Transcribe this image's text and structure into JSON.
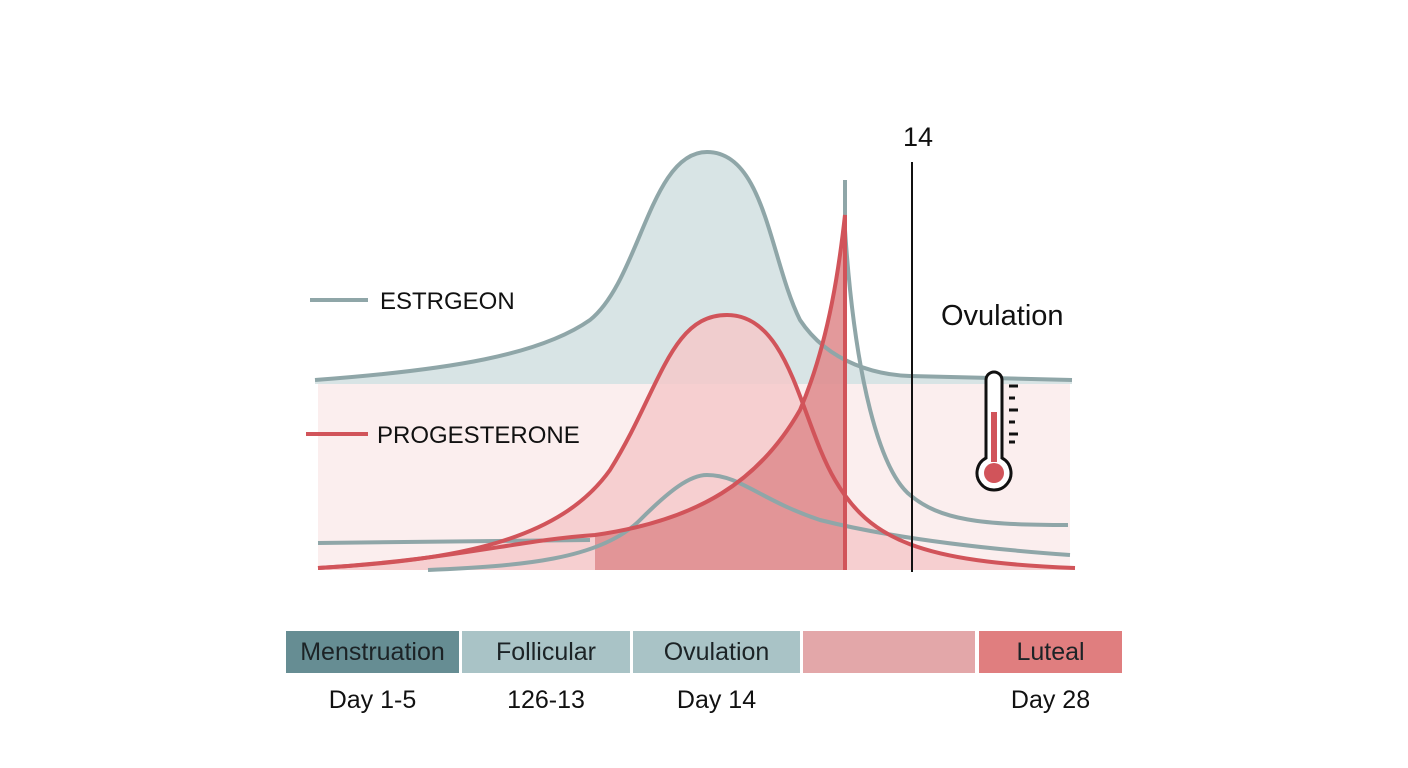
{
  "legend": [
    {
      "label": "ESTRGEON",
      "color": "#8fa6a8"
    },
    {
      "label": "PROGESTERONE",
      "color": "#d1545a"
    }
  ],
  "marker": {
    "label": "14"
  },
  "annotation": {
    "label": "Ovulation",
    "icon": "thermometer-icon"
  },
  "phases": [
    {
      "label": "Menstruation",
      "day": "Day 1-5",
      "color": "#668d93"
    },
    {
      "label": "Follicular",
      "day": "126-13",
      "color": "#a9c3c6"
    },
    {
      "label": "Ovulation",
      "day": "Day 14",
      "color": "#a9c3c6"
    },
    {
      "label": "",
      "day": "",
      "color": "#e3a7a9"
    },
    {
      "label": "Luteal",
      "day": "Day 28",
      "color": "#e07e7f"
    }
  ]
}
